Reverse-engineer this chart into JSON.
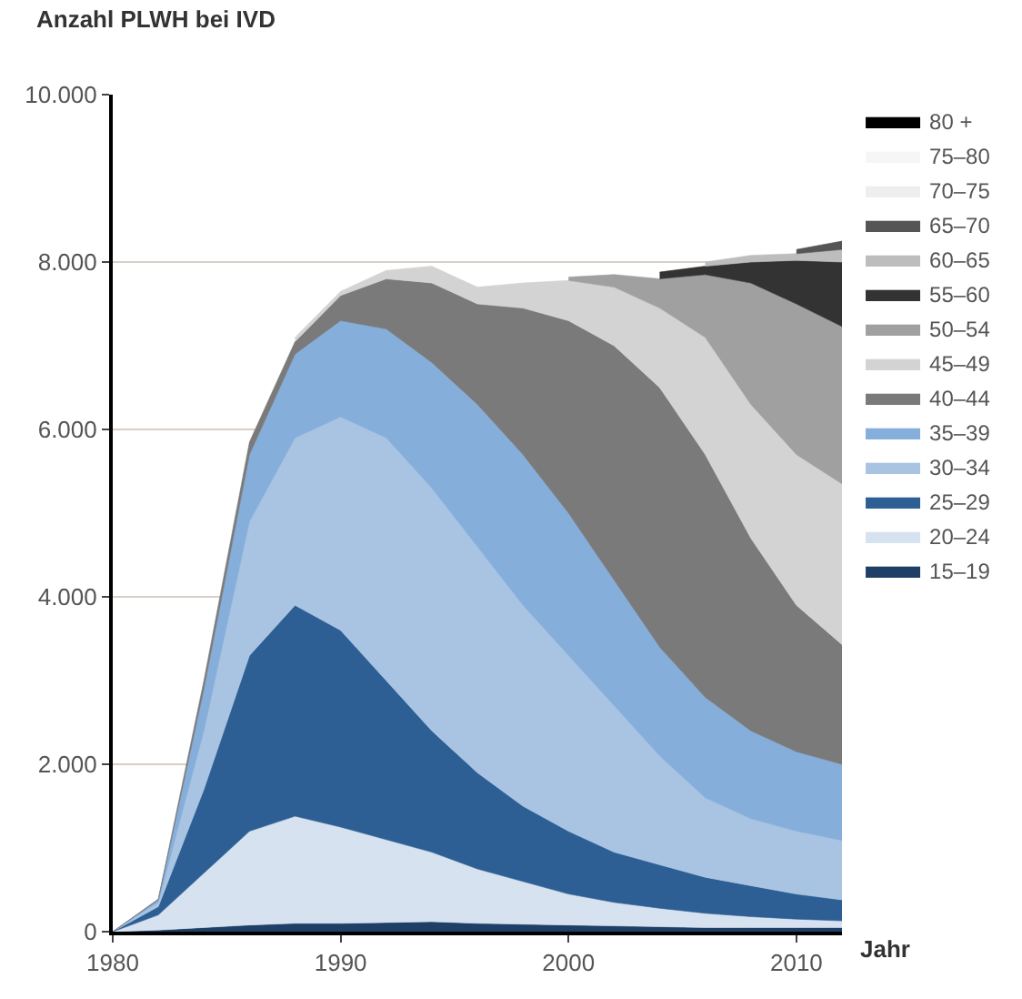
{
  "chart_data": {
    "type": "area",
    "stacked": true,
    "ylabel": "Anzahl PLWH bei IVD",
    "xlabel": "Jahr",
    "x": [
      1980,
      1982,
      1984,
      1986,
      1988,
      1990,
      1992,
      1994,
      1996,
      1998,
      2000,
      2002,
      2004,
      2006,
      2008,
      2010,
      2012
    ],
    "xlim": [
      1980,
      2012
    ],
    "xticks": [
      1980,
      1990,
      2000,
      2010
    ],
    "ylim": [
      0,
      10000
    ],
    "yticks": [
      {
        "value": 0,
        "label": "0"
      },
      {
        "value": 2000,
        "label": "2.000"
      },
      {
        "value": 4000,
        "label": "4.000"
      },
      {
        "value": 6000,
        "label": "6.000"
      },
      {
        "value": 8000,
        "label": "8.000"
      },
      {
        "value": 10000,
        "label": "10.000"
      }
    ],
    "grid": "y",
    "legend": "right",
    "series": [
      {
        "name": "15–19",
        "color": "#1f3f66",
        "values": [
          0,
          20,
          50,
          80,
          100,
          100,
          110,
          120,
          100,
          90,
          80,
          70,
          60,
          50,
          50,
          50,
          50
        ]
      },
      {
        "name": "20–24",
        "color": "#d6e2f0",
        "values": [
          0,
          180,
          650,
          1120,
          1280,
          1150,
          990,
          830,
          650,
          510,
          370,
          280,
          220,
          170,
          130,
          100,
          80
        ]
      },
      {
        "name": "25–29",
        "color": "#2e5f94",
        "values": [
          0,
          100,
          1000,
          2100,
          2520,
          2350,
          1900,
          1450,
          1150,
          900,
          750,
          600,
          520,
          430,
          370,
          300,
          250
        ]
      },
      {
        "name": "30–34",
        "color": "#a9c4e2",
        "values": [
          0,
          50,
          700,
          1600,
          2000,
          2550,
          2900,
          2900,
          2700,
          2400,
          2100,
          1750,
          1300,
          950,
          800,
          750,
          710
        ]
      },
      {
        "name": "35–39",
        "color": "#86aedb",
        "values": [
          0,
          30,
          500,
          800,
          1000,
          1150,
          1300,
          1500,
          1700,
          1800,
          1700,
          1500,
          1300,
          1200,
          1050,
          950,
          910
        ]
      },
      {
        "name": "40–44",
        "color": "#7a7a7a",
        "values": [
          0,
          10,
          100,
          150,
          150,
          300,
          600,
          950,
          1200,
          1750,
          2300,
          2800,
          3100,
          2900,
          2300,
          1750,
          1430
        ]
      },
      {
        "name": "45–49",
        "color": "#d3d3d3",
        "values": [
          null,
          null,
          null,
          null,
          50,
          50,
          100,
          200,
          200,
          300,
          480,
          700,
          950,
          1400,
          1600,
          1800,
          1920
        ]
      },
      {
        "name": "50–54",
        "color": "#a0a0a0",
        "values": [
          null,
          null,
          null,
          null,
          null,
          null,
          null,
          null,
          null,
          null,
          40,
          150,
          350,
          750,
          1450,
          1800,
          1880
        ]
      },
      {
        "name": "55–60",
        "color": "#333333",
        "values": [
          null,
          null,
          null,
          null,
          null,
          null,
          null,
          null,
          null,
          null,
          null,
          null,
          80,
          100,
          250,
          520,
          770
        ]
      },
      {
        "name": "60–65",
        "color": "#bdbdbd",
        "values": [
          null,
          null,
          null,
          null,
          null,
          null,
          null,
          null,
          null,
          null,
          null,
          null,
          null,
          50,
          80,
          80,
          150
        ]
      },
      {
        "name": "65–70",
        "color": "#555555",
        "values": [
          null,
          null,
          null,
          null,
          null,
          null,
          null,
          null,
          null,
          null,
          null,
          null,
          null,
          null,
          null,
          50,
          100
        ]
      },
      {
        "name": "70–75",
        "color": "#eeeeee",
        "values": [
          null,
          null,
          null,
          null,
          null,
          null,
          null,
          null,
          null,
          null,
          null,
          null,
          null,
          null,
          null,
          null,
          null
        ]
      },
      {
        "name": "75–80",
        "color": "#f6f6f6",
        "values": [
          null,
          null,
          null,
          null,
          null,
          null,
          null,
          null,
          null,
          null,
          null,
          null,
          null,
          null,
          null,
          null,
          null
        ]
      },
      {
        "name": "80 +",
        "color": "#000000",
        "values": [
          null,
          null,
          null,
          null,
          null,
          null,
          null,
          null,
          null,
          null,
          null,
          null,
          null,
          null,
          null,
          null,
          null
        ]
      }
    ]
  }
}
